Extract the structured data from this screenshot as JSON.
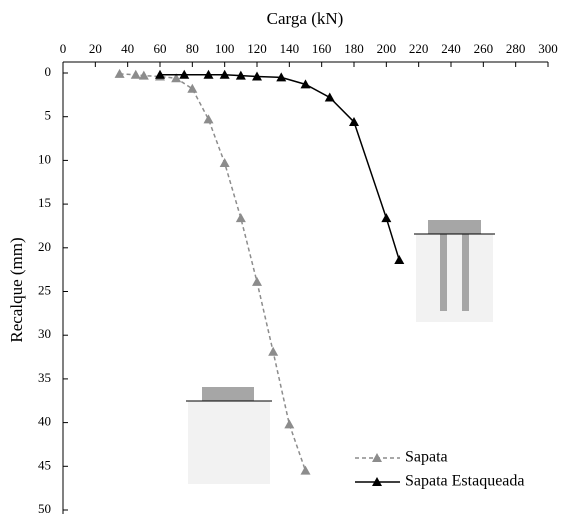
{
  "chart_data": {
    "type": "line",
    "x_label": "Carga (kN)",
    "y_label": "Recalque (mm)",
    "xlim": [
      0,
      300
    ],
    "xticks": [
      0,
      20,
      40,
      60,
      80,
      100,
      120,
      140,
      160,
      180,
      200,
      220,
      240,
      260,
      280,
      300
    ],
    "ylim": [
      0,
      50
    ],
    "yticks": [
      0,
      5,
      10,
      15,
      20,
      25,
      30,
      35,
      40,
      45,
      50
    ],
    "y_inverted": true,
    "x_axis_position": "top",
    "legend": "lower right",
    "series": [
      {
        "name": "Sapata",
        "color": "#8c8c8c",
        "dashed": true,
        "x": [
          35,
          45,
          50,
          60,
          70,
          80,
          90,
          100,
          110,
          120,
          130,
          140,
          150
        ],
        "values": [
          0.1,
          0.2,
          0.3,
          0.4,
          0.6,
          1.8,
          5.3,
          10.3,
          16.6,
          23.9,
          31.9,
          40.2,
          45.5
        ]
      },
      {
        "name": "Sapata Estaqueada",
        "color": "#000000",
        "dashed": false,
        "x": [
          60,
          75,
          90,
          100,
          110,
          120,
          135,
          150,
          165,
          180,
          200,
          208
        ],
        "values": [
          0.2,
          0.2,
          0.2,
          0.2,
          0.3,
          0.4,
          0.5,
          1.3,
          2.8,
          5.6,
          16.6,
          21.4
        ]
      }
    ]
  }
}
